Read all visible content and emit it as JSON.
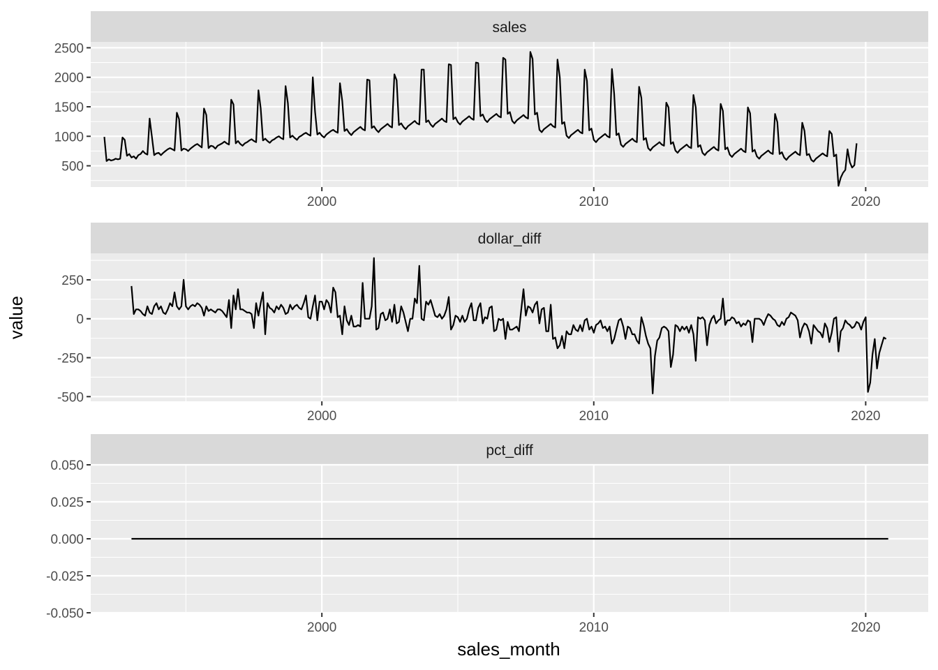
{
  "chart_data": {
    "type": "line",
    "layout": "facet_wrap vertical, shared x axis, free y scales",
    "xlabel": "sales_month",
    "ylabel": "value",
    "x_range": [
      1991.5,
      2022.3
    ],
    "x_ticks": [
      2000,
      2010,
      2020
    ],
    "x_tick_labels": [
      "2000",
      "2010",
      "2020"
    ],
    "grid": true,
    "legend": "none",
    "line_color": "#000000",
    "panel_background": "#ebebeb",
    "strip_background": "#d9d9d9",
    "panels": [
      {
        "name": "sales",
        "strip_label": "sales",
        "ylim": [
          140,
          2600
        ],
        "y_ticks": [
          500,
          1000,
          1500,
          2000,
          2500
        ],
        "y_tick_labels": [
          "500",
          "1000",
          "1500",
          "2000",
          "2500"
        ],
        "x_start": 1992.0,
        "x_step_months": 1,
        "values": [
          990,
          580,
          610,
          590,
          600,
          620,
          610,
          620,
          980,
          940,
          670,
          700,
          640,
          660,
          620,
          680,
          700,
          750,
          710,
          690,
          1300,
          990,
          680,
          710,
          720,
          680,
          720,
          750,
          780,
          800,
          780,
          760,
          1400,
          1290,
          760,
          790,
          780,
          750,
          790,
          820,
          850,
          870,
          840,
          810,
          1470,
          1360,
          800,
          840,
          830,
          790,
          840,
          860,
          880,
          910,
          880,
          860,
          1620,
          1540,
          880,
          920,
          870,
          840,
          880,
          900,
          930,
          950,
          920,
          900,
          1780,
          1480,
          930,
          960,
          920,
          890,
          930,
          950,
          980,
          1000,
          970,
          950,
          1850,
          1560,
          980,
          1010,
          970,
          940,
          990,
          1010,
          1040,
          1060,
          1030,
          1010,
          2000,
          1420,
          1030,
          1060,
          1010,
          980,
          1030,
          1060,
          1090,
          1110,
          1080,
          1060,
          1900,
          1600,
          1090,
          1120,
          1060,
          1020,
          1070,
          1100,
          1130,
          1160,
          1120,
          1100,
          1960,
          1950,
          1140,
          1170,
          1110,
          1070,
          1120,
          1150,
          1180,
          1210,
          1170,
          1150,
          2050,
          1950,
          1190,
          1220,
          1160,
          1120,
          1170,
          1200,
          1230,
          1260,
          1220,
          1200,
          2130,
          2130,
          1240,
          1270,
          1200,
          1160,
          1210,
          1240,
          1270,
          1300,
          1260,
          1240,
          2220,
          2210,
          1290,
          1320,
          1240,
          1200,
          1250,
          1280,
          1310,
          1340,
          1300,
          1280,
          2250,
          2240,
          1340,
          1370,
          1280,
          1240,
          1290,
          1320,
          1350,
          1380,
          1340,
          1320,
          2330,
          2300,
          1380,
          1410,
          1260,
          1220,
          1270,
          1300,
          1330,
          1360,
          1320,
          1300,
          2430,
          2310,
          1370,
          1400,
          1110,
          1070,
          1120,
          1150,
          1180,
          1210,
          1170,
          1150,
          2300,
          2000,
          1210,
          1240,
          1010,
          970,
          1020,
          1050,
          1080,
          1110,
          1070,
          1050,
          2130,
          1940,
          1100,
          1130,
          940,
          900,
          950,
          980,
          1010,
          1040,
          1000,
          980,
          2140,
          1720,
          1020,
          1050,
          860,
          820,
          870,
          900,
          930,
          960,
          920,
          900,
          1840,
          1650,
          940,
          970,
          800,
          760,
          810,
          840,
          870,
          900,
          860,
          840,
          1570,
          1490,
          870,
          900,
          760,
          720,
          770,
          800,
          830,
          860,
          820,
          800,
          1700,
          1490,
          820,
          850,
          720,
          680,
          730,
          760,
          790,
          820,
          780,
          760,
          1550,
          1430,
          780,
          810,
          690,
          650,
          700,
          730,
          760,
          790,
          750,
          730,
          1490,
          1390,
          740,
          770,
          660,
          620,
          670,
          700,
          730,
          760,
          720,
          700,
          1380,
          1240,
          700,
          730,
          640,
          600,
          650,
          680,
          710,
          740,
          700,
          680,
          1230,
          1090,
          680,
          700,
          600,
          570,
          620,
          650,
          680,
          710,
          680,
          660,
          1090,
          1040,
          660,
          690,
          160,
          300,
          380,
          430,
          780,
          560,
          470,
          510,
          880
        ]
      },
      {
        "name": "dollar_diff",
        "strip_label": "dollar_diff",
        "ylim": [
          -530,
          420
        ],
        "y_ticks": [
          -500,
          -250,
          0,
          250
        ],
        "y_tick_labels": [
          "-500",
          "-250",
          "0",
          "250"
        ],
        "x_start": 1993.0,
        "x_step_months": 1,
        "values": [
          210,
          30,
          60,
          60,
          50,
          30,
          20,
          80,
          40,
          30,
          80,
          100,
          60,
          80,
          40,
          30,
          60,
          100,
          80,
          170,
          80,
          60,
          80,
          250,
          80,
          60,
          80,
          90,
          80,
          100,
          90,
          70,
          20,
          80,
          50,
          60,
          50,
          40,
          60,
          60,
          50,
          30,
          10,
          120,
          -60,
          150,
          60,
          190,
          60,
          60,
          50,
          40,
          40,
          30,
          -60,
          100,
          20,
          100,
          170,
          -100,
          100,
          70,
          60,
          40,
          80,
          60,
          90,
          70,
          30,
          40,
          90,
          60,
          80,
          90,
          70,
          60,
          100,
          150,
          10,
          0,
          80,
          150,
          -10,
          110,
          110,
          60,
          120,
          100,
          40,
          200,
          170,
          10,
          20,
          -100,
          80,
          -10,
          -40,
          20,
          -50,
          -50,
          -40,
          -50,
          230,
          0,
          0,
          0,
          80,
          390,
          -70,
          -60,
          30,
          40,
          -10,
          0,
          60,
          -20,
          90,
          -30,
          -20,
          80,
          40,
          -20,
          -80,
          0,
          0,
          130,
          100,
          340,
          0,
          -10,
          110,
          90,
          120,
          70,
          20,
          10,
          30,
          0,
          20,
          60,
          140,
          -70,
          -40,
          20,
          10,
          -20,
          20,
          -20,
          0,
          60,
          100,
          -10,
          -10,
          70,
          100,
          -30,
          10,
          0,
          70,
          80,
          -80,
          -70,
          0,
          -10,
          0,
          -130,
          -20,
          -70,
          -70,
          -60,
          -50,
          -80,
          60,
          190,
          20,
          80,
          70,
          40,
          90,
          110,
          -30,
          60,
          70,
          -80,
          -80,
          90,
          -130,
          -120,
          -190,
          -170,
          -110,
          -190,
          -80,
          -100,
          -100,
          -40,
          -70,
          -80,
          -40,
          -80,
          -10,
          0,
          -70,
          -50,
          -90,
          -40,
          -30,
          -10,
          -60,
          -50,
          -80,
          -50,
          -160,
          -130,
          -70,
          -10,
          0,
          -50,
          -130,
          -50,
          -60,
          -100,
          -100,
          -140,
          -160,
          10,
          -40,
          -110,
          -160,
          -190,
          -480,
          -240,
          -140,
          -120,
          -60,
          -50,
          -60,
          -80,
          -310,
          -230,
          -40,
          -50,
          -80,
          -50,
          -70,
          -50,
          -90,
          -40,
          -100,
          -270,
          10,
          0,
          10,
          -10,
          -170,
          -40,
          0,
          20,
          -30,
          -10,
          0,
          130,
          -40,
          -10,
          -10,
          10,
          0,
          -30,
          -20,
          -50,
          -30,
          -40,
          -10,
          -20,
          -150,
          0,
          0,
          0,
          -10,
          -40,
          0,
          30,
          20,
          0,
          -10,
          -40,
          -50,
          -20,
          -40,
          0,
          10,
          40,
          30,
          20,
          -10,
          -120,
          -60,
          -30,
          -40,
          -80,
          -160,
          -40,
          -60,
          -80,
          -90,
          -120,
          -30,
          -60,
          -150,
          -90,
          0,
          10,
          -210,
          -80,
          -60,
          -10,
          -30,
          -40,
          -60,
          -50,
          -20,
          -30,
          -70,
          -20,
          10,
          -470,
          -410,
          -230,
          -130,
          -320,
          -220,
          -170,
          -120,
          -130
        ]
      },
      {
        "name": "pct_diff",
        "strip_label": "pct_diff",
        "ylim": [
          -0.05,
          0.05
        ],
        "y_ticks": [
          -0.05,
          -0.025,
          0,
          0.025,
          0.05
        ],
        "y_tick_labels": [
          "-0.050",
          "-0.025",
          "0.000",
          "0.025",
          "0.050"
        ],
        "x_start": 1993.0,
        "x_end": 2020.83,
        "values": [
          0,
          0
        ]
      }
    ]
  }
}
